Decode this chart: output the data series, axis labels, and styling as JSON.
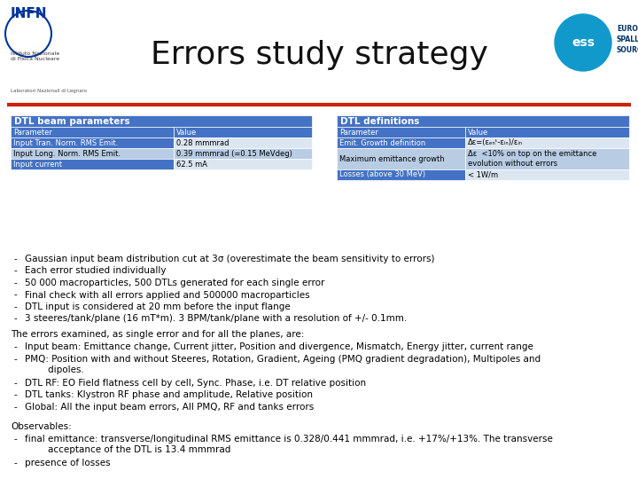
{
  "title": "Errors study strategy",
  "bg_color": "#ffffff",
  "header_line_color": "#cc2200",
  "dtl_beam_header": "DTL beam parameters",
  "dtl_def_header": "DTL definitions",
  "header_bg": "#4472c4",
  "header_text_color": "#ffffff",
  "dtl_beam_rows": [
    [
      "Parameter",
      "Value"
    ],
    [
      "Input Tran. Norm. RMS Emit.",
      "0.28 mmmrad"
    ],
    [
      "Input Long. Norm. RMS Emit.",
      "0.39 mmmrad (=0.15 MeVdeg)"
    ],
    [
      "Input current",
      "62.5 mA"
    ]
  ],
  "dtl_def_rows": [
    [
      "Parameter",
      "Value"
    ],
    [
      "Emit. Growth definition",
      "Δε=(εₑₙᵗ-εᵢₙ)/εᵢₙ"
    ],
    [
      "Maximum emittance growth",
      "Δε  <10% on top on the emittance\nevolution without errors"
    ],
    [
      "Losses (above 30 MeV)",
      "< 1W/m"
    ]
  ],
  "bullet_points": [
    "Gaussian input beam distribution cut at 3σ (overestimate the beam sensitivity to errors)",
    "Each error studied individually",
    "50 000 macroparticles, 500 DTLs generated for each single error",
    "Final check with all errors applied and 500000 macroparticles",
    "DTL input is considered at 20 mm before the input flange",
    "3 steeres/tank/plane (16 mT*m). 3 BPM/tank/plane with a resolution of +/- 0.1mm."
  ],
  "errors_header": "The errors examined, as single error and for all the planes, are:",
  "errors_bullets": [
    "Input beam: Emittance change, Current jitter, Position and divergence, Mismatch, Energy jitter, current range",
    "PMQ: Position with and without Steeres, Rotation, Gradient, Ageing (PMQ gradient degradation), Multipoles and\n        dipoles.",
    "DTL RF: EO Field flatness cell by cell, Sync. Phase, i.e. DT relative position",
    "DTL tanks: Klystron RF phase and amplitude, Relative position",
    "Global: All the input beam errors, All PMQ, RF and tanks errors"
  ],
  "observables_header": "Observables:",
  "observables_bullets": [
    "final emittance: transverse/longitudinal RMS emittance is 0.328/0.441 mmmrad, i.e. +17%/+13%. The transverse\n        acceptance of the DTL is 13.4 mmmrad",
    "presence of losses"
  ],
  "row_colors_left": [
    "#4472c4",
    "#4472c4",
    "#b8cce4",
    "#4472c4"
  ],
  "row_colors_right": [
    "#4472c4",
    "#dce6f1",
    "#b8cce4",
    "#dce6f1"
  ],
  "def_row_colors_left": [
    "#4472c4",
    "#4472c4",
    "#b8cce4",
    "#4472c4"
  ],
  "def_row_colors_right": [
    "#4472c4",
    "#dce6f1",
    "#b8cce4",
    "#dce6f1"
  ]
}
